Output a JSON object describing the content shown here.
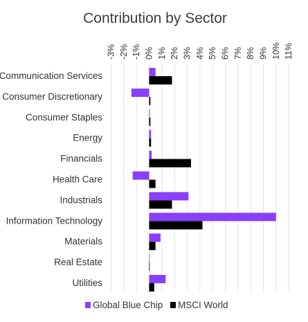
{
  "chart_data": {
    "type": "bar",
    "orientation": "horizontal",
    "title": "Contribution by Sector",
    "xlabel": "",
    "ylabel": "",
    "xlim": [
      -3,
      11
    ],
    "x_ticks": [
      "-3%",
      "-2%",
      "-1%",
      "0%",
      "1%",
      "2%",
      "3%",
      "4%",
      "5%",
      "6%",
      "7%",
      "8%",
      "9%",
      "10%",
      "11%"
    ],
    "categories": [
      "Communication Services",
      "Consumer Discretionary",
      "Consumer Staples",
      "Energy",
      "Financials",
      "Health Care",
      "Industrials",
      "Information Technology",
      "Materials",
      "Real Estate",
      "Utilities"
    ],
    "series": [
      {
        "name": "Global Blue Chip",
        "color": "#8a3ffc",
        "values": [
          0.5,
          -1.4,
          0.05,
          0.15,
          0.2,
          -1.3,
          3.1,
          10.0,
          0.9,
          0.0,
          1.3
        ]
      },
      {
        "name": "MSCI World",
        "color": "#000000",
        "values": [
          1.8,
          0.1,
          0.1,
          0.15,
          3.3,
          0.5,
          1.8,
          4.2,
          0.5,
          0.0,
          0.4
        ]
      }
    ],
    "grid": true,
    "legend_position": "bottom"
  }
}
